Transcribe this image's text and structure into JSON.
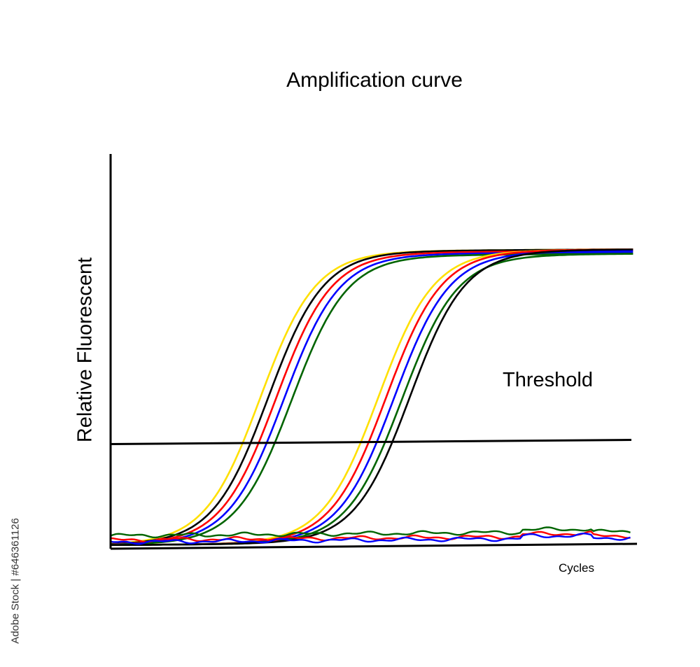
{
  "chart_data": {
    "type": "line",
    "title": "Amplification curve",
    "xlabel": "Cycles",
    "ylabel": "Relative Fluorescent",
    "xlim": [
      0,
      100
    ],
    "ylim": [
      0,
      100
    ],
    "grid": false,
    "threshold": {
      "label": "Threshold",
      "value": 36
    },
    "colors": {
      "yellow": "#ffe000",
      "black": "#000000",
      "red": "#ff0000",
      "blue": "#0000ff",
      "green": "#006400"
    },
    "series": [
      {
        "color": "yellow",
        "midpoint": 28.5,
        "plateau": 100
      },
      {
        "color": "black",
        "midpoint": 30.0,
        "plateau": 100
      },
      {
        "color": "red",
        "midpoint": 31.5,
        "plateau": 99.5
      },
      {
        "color": "blue",
        "midpoint": 33.0,
        "plateau": 99
      },
      {
        "color": "green",
        "midpoint": 34.5,
        "plateau": 98.5
      },
      {
        "color": "yellow",
        "midpoint": 51.0,
        "plateau": 100
      },
      {
        "color": "red",
        "midpoint": 52.5,
        "plateau": 100
      },
      {
        "color": "blue",
        "midpoint": 54.0,
        "plateau": 99.5
      },
      {
        "color": "green",
        "midpoint": 55.5,
        "plateau": 98.5
      },
      {
        "color": "black",
        "midpoint": 57.0,
        "plateau": 100
      }
    ],
    "baselines": [
      {
        "color": "green",
        "level": 3.5
      },
      {
        "color": "red",
        "level": 2.0
      },
      {
        "color": "blue",
        "level": 1.3
      }
    ]
  },
  "watermark": "Adobe Stock | #646361126"
}
